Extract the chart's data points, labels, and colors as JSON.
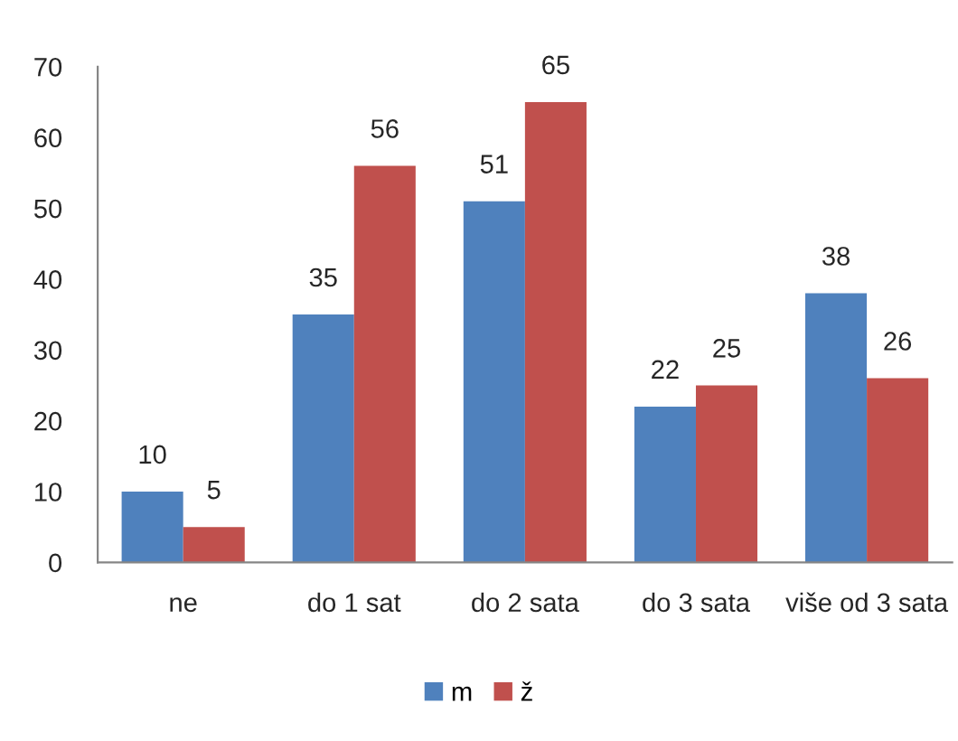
{
  "chart_data": {
    "type": "bar",
    "categories": [
      "ne",
      "do 1 sat",
      "do 2 sata",
      "do 3 sata",
      "više od 3 sata"
    ],
    "series": [
      {
        "name": "m",
        "color": "#4f81bd",
        "values": [
          10,
          35,
          51,
          22,
          38
        ]
      },
      {
        "name": "ž",
        "color": "#c0504d",
        "values": [
          5,
          56,
          65,
          25,
          26
        ]
      }
    ],
    "ylim": [
      0,
      70
    ],
    "yticks": [
      0,
      10,
      20,
      30,
      40,
      50,
      60,
      70
    ],
    "data_labels": true,
    "legend": "bottom",
    "grid": false
  }
}
